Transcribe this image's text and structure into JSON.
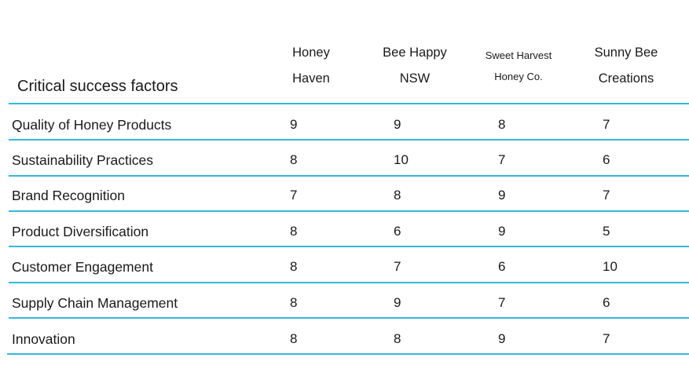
{
  "table": {
    "title": "Critical success factors",
    "columns": [
      [
        "Honey",
        "Haven"
      ],
      [
        "Bee Happy",
        "NSW"
      ],
      [
        "Sweet Harvest",
        "Honey Co."
      ],
      [
        "Sunny Bee",
        "Creations"
      ]
    ],
    "rows": [
      {
        "label": "Quality of Honey Products",
        "values": [
          "9",
          "9",
          "8",
          "7"
        ]
      },
      {
        "label": "Sustainability Practices",
        "values": [
          "8",
          "10",
          "7",
          "6"
        ]
      },
      {
        "label": "Brand Recognition",
        "values": [
          "7",
          "8",
          "9",
          "7"
        ]
      },
      {
        "label": "Product Diversification",
        "values": [
          "8",
          "6",
          "9",
          "5"
        ]
      },
      {
        "label": "Customer Engagement",
        "values": [
          "8",
          "7",
          "6",
          "10"
        ]
      },
      {
        "label": "Supply Chain Management",
        "values": [
          "8",
          "9",
          "7",
          "6"
        ]
      },
      {
        "label": "Innovation",
        "values": [
          "8",
          "8",
          "9",
          "7"
        ]
      }
    ],
    "line_color": "#35b7dd"
  }
}
